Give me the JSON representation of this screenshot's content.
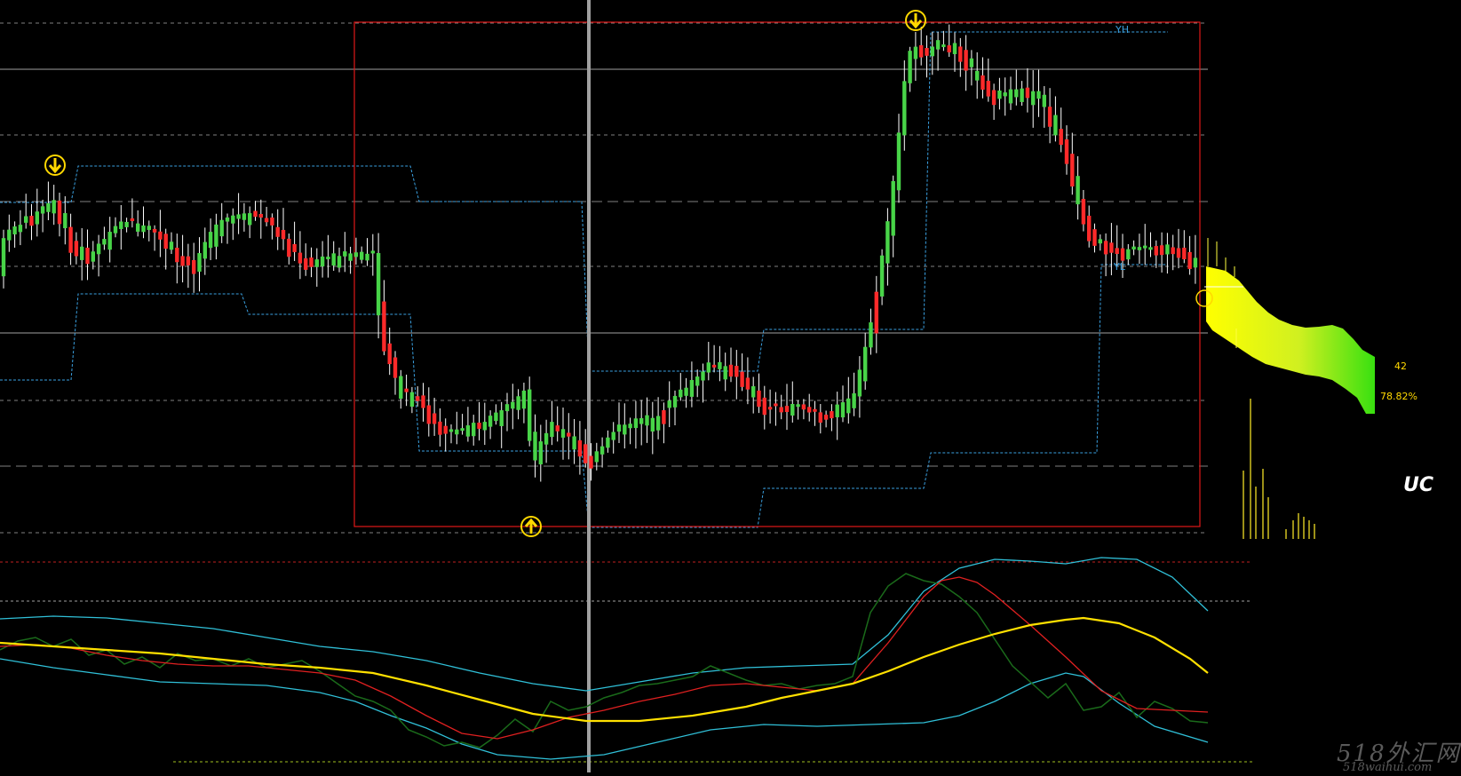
{
  "labels": {
    "yh": "YH",
    "yl": "YL",
    "count": "42",
    "percent": "78.82%"
  },
  "logo_text": "UC",
  "watermark": {
    "title": "518外汇网",
    "url": "518waihui.com"
  },
  "colors": {
    "background": "#000000",
    "bull_candle": "#48d448",
    "bear_candle": "#ff2a2a",
    "wick": "#ffffff",
    "box_border": "#e01818",
    "channel": "#3aa0e0",
    "signal_arrow": "#ffd800",
    "yellow_line": "#ffe000",
    "red_line": "#e02020",
    "green_line": "#1a6a1a",
    "cyan_line": "#30c0d8",
    "label_text": "#ffd800",
    "yh_text": "#3aa0e0"
  }
}
